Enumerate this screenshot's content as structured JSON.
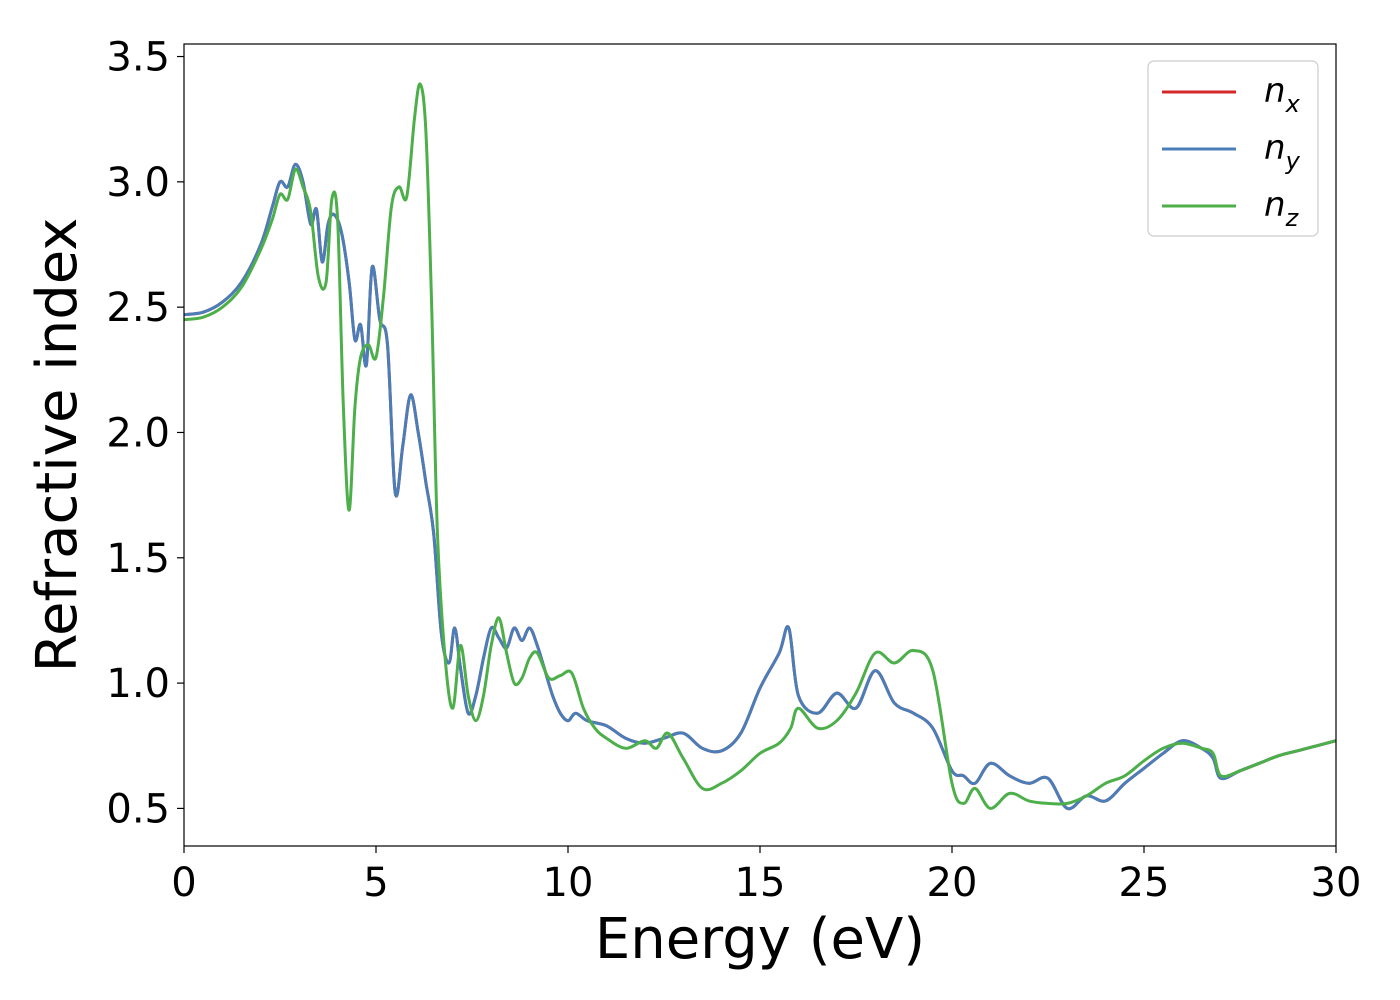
{
  "chart_data": {
    "type": "line",
    "title": "",
    "xlabel": "Energy (eV)",
    "ylabel": "Refractive index",
    "xlim": [
      0,
      30
    ],
    "ylim": [
      0.35,
      3.55
    ],
    "xticks": [
      0,
      5,
      10,
      15,
      20,
      25,
      30
    ],
    "yticks": [
      0.5,
      1.0,
      1.5,
      2.0,
      2.5,
      3.0,
      3.5
    ],
    "xtick_labels": [
      "0",
      "5",
      "10",
      "15",
      "20",
      "25",
      "30"
    ],
    "ytick_labels": [
      "0.5",
      "1.0",
      "1.5",
      "2.0",
      "2.5",
      "3.0",
      "3.5"
    ],
    "grid": false,
    "legend_position": "top-right",
    "series": [
      {
        "name": "n_x",
        "label_main": "n",
        "label_sub": "x",
        "color": "#d62728",
        "x": [
          0,
          0.5,
          1,
          1.5,
          2,
          2.3,
          2.5,
          2.7,
          2.9,
          3.1,
          3.3,
          3.45,
          3.6,
          3.75,
          3.9,
          4.1,
          4.3,
          4.45,
          4.6,
          4.75,
          4.9,
          5.1,
          5.3,
          5.5,
          5.7,
          5.9,
          6.1,
          6.3,
          6.5,
          6.7,
          6.9,
          7.05,
          7.2,
          7.4,
          7.6,
          7.8,
          8.0,
          8.2,
          8.4,
          8.6,
          8.8,
          9.0,
          9.2,
          9.4,
          9.6,
          9.8,
          10.0,
          10.2,
          10.5,
          11,
          11.5,
          12,
          12.5,
          13,
          13.5,
          14,
          14.5,
          15,
          15.5,
          15.75,
          16,
          16.5,
          17,
          17.5,
          18,
          18.5,
          19,
          19.5,
          20,
          20.3,
          20.6,
          21,
          21.5,
          22,
          22.5,
          23,
          23.5,
          24,
          24.5,
          25,
          25.5,
          26,
          26.5,
          26.8,
          27,
          27.5,
          28,
          28.5,
          29,
          29.5,
          30
        ],
        "y": [
          2.47,
          2.48,
          2.52,
          2.6,
          2.75,
          2.9,
          3.0,
          2.98,
          3.07,
          3.0,
          2.83,
          2.89,
          2.68,
          2.83,
          2.87,
          2.8,
          2.6,
          2.37,
          2.43,
          2.27,
          2.66,
          2.45,
          2.35,
          1.76,
          1.95,
          2.15,
          2.0,
          1.8,
          1.6,
          1.2,
          1.08,
          1.22,
          1.06,
          0.88,
          0.95,
          1.1,
          1.22,
          1.18,
          1.14,
          1.22,
          1.17,
          1.22,
          1.15,
          1.05,
          0.95,
          0.88,
          0.85,
          0.88,
          0.85,
          0.83,
          0.78,
          0.76,
          0.78,
          0.8,
          0.74,
          0.73,
          0.8,
          0.98,
          1.12,
          1.22,
          0.95,
          0.88,
          0.96,
          0.9,
          1.05,
          0.92,
          0.88,
          0.82,
          0.65,
          0.63,
          0.6,
          0.68,
          0.63,
          0.6,
          0.62,
          0.5,
          0.55,
          0.53,
          0.6,
          0.66,
          0.72,
          0.77,
          0.74,
          0.7,
          0.62,
          0.65,
          0.68,
          0.71,
          0.73,
          0.75,
          0.77
        ]
      },
      {
        "name": "n_y",
        "label_main": "n",
        "label_sub": "y",
        "color": "#4a7eb8",
        "x": [
          0,
          0.5,
          1,
          1.5,
          2,
          2.3,
          2.5,
          2.7,
          2.9,
          3.1,
          3.3,
          3.45,
          3.6,
          3.75,
          3.9,
          4.1,
          4.3,
          4.45,
          4.6,
          4.75,
          4.9,
          5.1,
          5.3,
          5.5,
          5.7,
          5.9,
          6.1,
          6.3,
          6.5,
          6.7,
          6.9,
          7.05,
          7.2,
          7.4,
          7.6,
          7.8,
          8.0,
          8.2,
          8.4,
          8.6,
          8.8,
          9.0,
          9.2,
          9.4,
          9.6,
          9.8,
          10.0,
          10.2,
          10.5,
          11,
          11.5,
          12,
          12.5,
          13,
          13.5,
          14,
          14.5,
          15,
          15.5,
          15.75,
          16,
          16.5,
          17,
          17.5,
          18,
          18.5,
          19,
          19.5,
          20,
          20.3,
          20.6,
          21,
          21.5,
          22,
          22.5,
          23,
          23.5,
          24,
          24.5,
          25,
          25.5,
          26,
          26.5,
          26.8,
          27,
          27.5,
          28,
          28.5,
          29,
          29.5,
          30
        ],
        "y": [
          2.47,
          2.48,
          2.52,
          2.6,
          2.75,
          2.9,
          3.0,
          2.98,
          3.07,
          3.0,
          2.83,
          2.89,
          2.68,
          2.83,
          2.87,
          2.8,
          2.6,
          2.37,
          2.43,
          2.27,
          2.66,
          2.45,
          2.35,
          1.76,
          1.95,
          2.15,
          2.0,
          1.8,
          1.6,
          1.2,
          1.08,
          1.22,
          1.06,
          0.88,
          0.95,
          1.1,
          1.22,
          1.18,
          1.14,
          1.22,
          1.17,
          1.22,
          1.15,
          1.05,
          0.95,
          0.88,
          0.85,
          0.88,
          0.85,
          0.83,
          0.78,
          0.76,
          0.78,
          0.8,
          0.74,
          0.73,
          0.8,
          0.98,
          1.12,
          1.22,
          0.95,
          0.88,
          0.96,
          0.9,
          1.05,
          0.92,
          0.88,
          0.82,
          0.65,
          0.63,
          0.6,
          0.68,
          0.63,
          0.6,
          0.62,
          0.5,
          0.55,
          0.53,
          0.6,
          0.66,
          0.72,
          0.77,
          0.74,
          0.7,
          0.62,
          0.65,
          0.68,
          0.71,
          0.73,
          0.75,
          0.77
        ]
      },
      {
        "name": "n_z",
        "label_main": "n",
        "label_sub": "z",
        "color": "#4daf4a",
        "x": [
          0,
          0.5,
          1,
          1.5,
          2,
          2.3,
          2.5,
          2.7,
          2.9,
          3.1,
          3.3,
          3.5,
          3.7,
          3.85,
          4.0,
          4.15,
          4.3,
          4.45,
          4.6,
          4.8,
          5.0,
          5.2,
          5.4,
          5.6,
          5.8,
          6.0,
          6.15,
          6.3,
          6.45,
          6.6,
          6.8,
          7.0,
          7.2,
          7.4,
          7.6,
          7.8,
          8.0,
          8.2,
          8.4,
          8.6,
          8.8,
          9.0,
          9.2,
          9.5,
          9.8,
          10.1,
          10.4,
          10.7,
          11,
          11.5,
          12,
          12.3,
          12.6,
          13,
          13.5,
          14,
          14.5,
          15,
          15.5,
          15.8,
          16,
          16.5,
          17,
          17.5,
          18,
          18.5,
          19,
          19.5,
          20,
          20.3,
          20.6,
          21,
          21.5,
          22,
          22.5,
          23,
          23.5,
          24,
          24.5,
          25,
          25.5,
          26,
          26.5,
          26.8,
          27,
          27.5,
          28,
          28.5,
          29,
          29.5,
          30
        ],
        "y": [
          2.45,
          2.46,
          2.5,
          2.58,
          2.73,
          2.85,
          2.95,
          2.93,
          3.05,
          2.98,
          2.88,
          2.62,
          2.6,
          2.93,
          2.85,
          2.1,
          1.69,
          2.1,
          2.3,
          2.35,
          2.3,
          2.55,
          2.9,
          2.98,
          2.94,
          3.25,
          3.39,
          3.2,
          2.5,
          1.6,
          1.1,
          0.9,
          1.15,
          0.95,
          0.85,
          0.95,
          1.15,
          1.26,
          1.12,
          1.0,
          1.02,
          1.1,
          1.12,
          1.02,
          1.03,
          1.04,
          0.9,
          0.82,
          0.78,
          0.74,
          0.77,
          0.74,
          0.8,
          0.7,
          0.58,
          0.6,
          0.65,
          0.72,
          0.76,
          0.82,
          0.9,
          0.82,
          0.85,
          0.96,
          1.12,
          1.08,
          1.13,
          1.05,
          0.6,
          0.52,
          0.58,
          0.5,
          0.56,
          0.53,
          0.52,
          0.52,
          0.55,
          0.6,
          0.63,
          0.69,
          0.74,
          0.76,
          0.74,
          0.72,
          0.63,
          0.65,
          0.68,
          0.71,
          0.73,
          0.75,
          0.77
        ]
      }
    ]
  }
}
